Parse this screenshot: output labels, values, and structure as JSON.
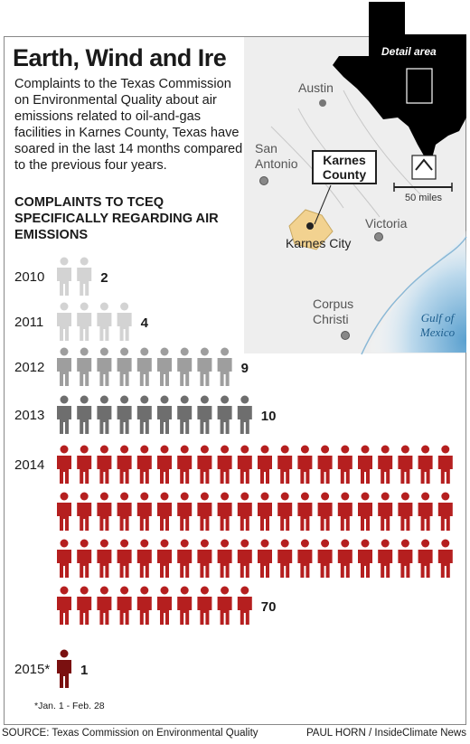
{
  "title": "Earth, Wind and Ire",
  "intro": "Complaints to the Texas Commission on Environmental Quality about air emissions related to oil-and-gas facilities in Karnes County, Texas have soared in the last 14 months compared to the previous four years.",
  "subtitle": "COMPLAINTS TO TCEQ SPECIFICALLY REGARDING AIR EMISSIONS",
  "chart_data": {
    "type": "pictograph",
    "categories": [
      "2010",
      "2011",
      "2012",
      "2013",
      "2014",
      "2015*"
    ],
    "values": [
      2,
      4,
      9,
      10,
      70,
      1
    ],
    "colors": [
      "#d3d3d3",
      "#d3d3d3",
      "#9e9e9e",
      "#6e6e6e",
      "#b51f1f",
      "#7a1010"
    ],
    "footnote": "*Jan. 1 - Feb. 28"
  },
  "map": {
    "detail_label": "Detail area",
    "county_label": "Karnes County",
    "cities": [
      "Austin",
      "San Antonio",
      "Victoria",
      "Karnes City",
      "Corpus Christi"
    ],
    "gulf": "Gulf of Mexico",
    "scale": "50 miles",
    "north": "N"
  },
  "source": "SOURCE: Texas Commission on Environmental Quality",
  "credit": "PAUL HORN / InsideClimate News"
}
